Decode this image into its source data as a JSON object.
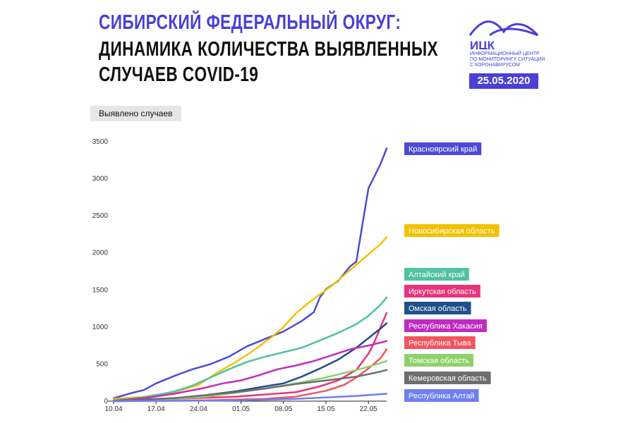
{
  "header": {
    "title_line1": "СИБИРСКИЙ ФЕДЕРАЛЬНЫЙ ОКРУГ:",
    "title_line2": "ДИНАМИКА КОЛИЧЕСТВА ВЫЯВЛЕННЫХ",
    "title_line3": "СЛУЧАЕВ COVID-19"
  },
  "logo": {
    "text": "ИЦК",
    "subtitle": "ИНФОРМАЦИОННЫЙ ЦЕНТР ПО МОНИТОРИНГУ СИТУАЦИИ С КОРОНАВИРУСОМ",
    "date": "25.05.2020",
    "color": "#4a3fd6"
  },
  "chart_data": {
    "type": "line",
    "ylabel": "Выявлено случаев",
    "ylim": [
      0,
      3500
    ],
    "yticks": [
      0,
      500,
      1000,
      1500,
      2000,
      2500,
      3000,
      3500
    ],
    "x_ticks": [
      "10.04",
      "17.04",
      "24.04",
      "01.05",
      "08.05",
      "15.05",
      "22.05"
    ],
    "x_day_range": [
      0,
      45
    ],
    "grid": false,
    "series": [
      {
        "name": "Красноярский край",
        "color": "#4b4bd6",
        "points": [
          [
            0,
            40
          ],
          [
            3,
            110
          ],
          [
            5,
            150
          ],
          [
            7,
            240
          ],
          [
            10,
            340
          ],
          [
            13,
            430
          ],
          [
            16,
            500
          ],
          [
            19,
            600
          ],
          [
            22,
            740
          ],
          [
            25,
            840
          ],
          [
            28,
            940
          ],
          [
            31,
            1080
          ],
          [
            33,
            1200
          ],
          [
            34,
            1400
          ],
          [
            35,
            1510
          ],
          [
            37,
            1620
          ],
          [
            39,
            1820
          ],
          [
            40,
            1880
          ],
          [
            41,
            2380
          ],
          [
            42,
            2870
          ],
          [
            44,
            3200
          ],
          [
            45,
            3410
          ]
        ]
      },
      {
        "name": "Новосибирская область",
        "color": "#f2c200",
        "points": [
          [
            0,
            30
          ],
          [
            5,
            60
          ],
          [
            10,
            120
          ],
          [
            14,
            220
          ],
          [
            17,
            380
          ],
          [
            20,
            520
          ],
          [
            23,
            680
          ],
          [
            26,
            860
          ],
          [
            28,
            1000
          ],
          [
            30,
            1180
          ],
          [
            32,
            1320
          ],
          [
            34,
            1440
          ],
          [
            36,
            1560
          ],
          [
            38,
            1700
          ],
          [
            40,
            1840
          ],
          [
            42,
            1980
          ],
          [
            44,
            2120
          ],
          [
            45,
            2210
          ]
        ]
      },
      {
        "name": "Алтайский край",
        "color": "#4fc2a2",
        "points": [
          [
            0,
            10
          ],
          [
            5,
            50
          ],
          [
            10,
            130
          ],
          [
            13,
            210
          ],
          [
            16,
            320
          ],
          [
            19,
            430
          ],
          [
            22,
            530
          ],
          [
            25,
            600
          ],
          [
            28,
            660
          ],
          [
            31,
            720
          ],
          [
            34,
            820
          ],
          [
            37,
            920
          ],
          [
            40,
            1040
          ],
          [
            42,
            1150
          ],
          [
            44,
            1300
          ],
          [
            45,
            1400
          ]
        ]
      },
      {
        "name": "Иркутская область",
        "color": "#e8347a",
        "points": [
          [
            0,
            5
          ],
          [
            10,
            30
          ],
          [
            20,
            60
          ],
          [
            30,
            120
          ],
          [
            34,
            200
          ],
          [
            37,
            280
          ],
          [
            40,
            420
          ],
          [
            42,
            640
          ],
          [
            43,
            800
          ],
          [
            44,
            1000
          ],
          [
            45,
            1190
          ]
        ]
      },
      {
        "name": "Омская область",
        "color": "#1f4f8c",
        "points": [
          [
            0,
            5
          ],
          [
            10,
            40
          ],
          [
            15,
            80
          ],
          [
            20,
            130
          ],
          [
            25,
            200
          ],
          [
            28,
            240
          ],
          [
            31,
            330
          ],
          [
            34,
            440
          ],
          [
            37,
            560
          ],
          [
            40,
            720
          ],
          [
            42,
            850
          ],
          [
            44,
            980
          ],
          [
            45,
            1050
          ]
        ]
      },
      {
        "name": "Республика Хакасия",
        "color": "#c12bbf",
        "points": [
          [
            0,
            5
          ],
          [
            5,
            40
          ],
          [
            10,
            100
          ],
          [
            15,
            180
          ],
          [
            18,
            240
          ],
          [
            21,
            280
          ],
          [
            24,
            350
          ],
          [
            27,
            430
          ],
          [
            30,
            480
          ],
          [
            33,
            540
          ],
          [
            36,
            620
          ],
          [
            39,
            700
          ],
          [
            42,
            750
          ],
          [
            45,
            810
          ]
        ]
      },
      {
        "name": "Республика Тыва",
        "color": "#f2545e",
        "points": [
          [
            0,
            0
          ],
          [
            15,
            10
          ],
          [
            25,
            30
          ],
          [
            30,
            60
          ],
          [
            35,
            140
          ],
          [
            38,
            220
          ],
          [
            40,
            320
          ],
          [
            42,
            440
          ],
          [
            44,
            580
          ],
          [
            45,
            700
          ]
        ]
      },
      {
        "name": "Томская область",
        "color": "#8ed16a",
        "points": [
          [
            0,
            5
          ],
          [
            10,
            30
          ],
          [
            15,
            60
          ],
          [
            20,
            110
          ],
          [
            25,
            170
          ],
          [
            30,
            240
          ],
          [
            35,
            320
          ],
          [
            38,
            380
          ],
          [
            41,
            440
          ],
          [
            43,
            490
          ],
          [
            45,
            540
          ]
        ]
      },
      {
        "name": "Кемеровская область",
        "color": "#6e6e6e",
        "points": [
          [
            0,
            5
          ],
          [
            10,
            40
          ],
          [
            15,
            80
          ],
          [
            20,
            120
          ],
          [
            25,
            170
          ],
          [
            30,
            230
          ],
          [
            35,
            280
          ],
          [
            40,
            330
          ],
          [
            43,
            380
          ],
          [
            45,
            420
          ]
        ]
      },
      {
        "name": "Республика Алтай",
        "color": "#6f7ef0",
        "points": [
          [
            0,
            0
          ],
          [
            10,
            5
          ],
          [
            20,
            10
          ],
          [
            30,
            30
          ],
          [
            35,
            50
          ],
          [
            40,
            70
          ],
          [
            45,
            100
          ]
        ]
      }
    ]
  }
}
